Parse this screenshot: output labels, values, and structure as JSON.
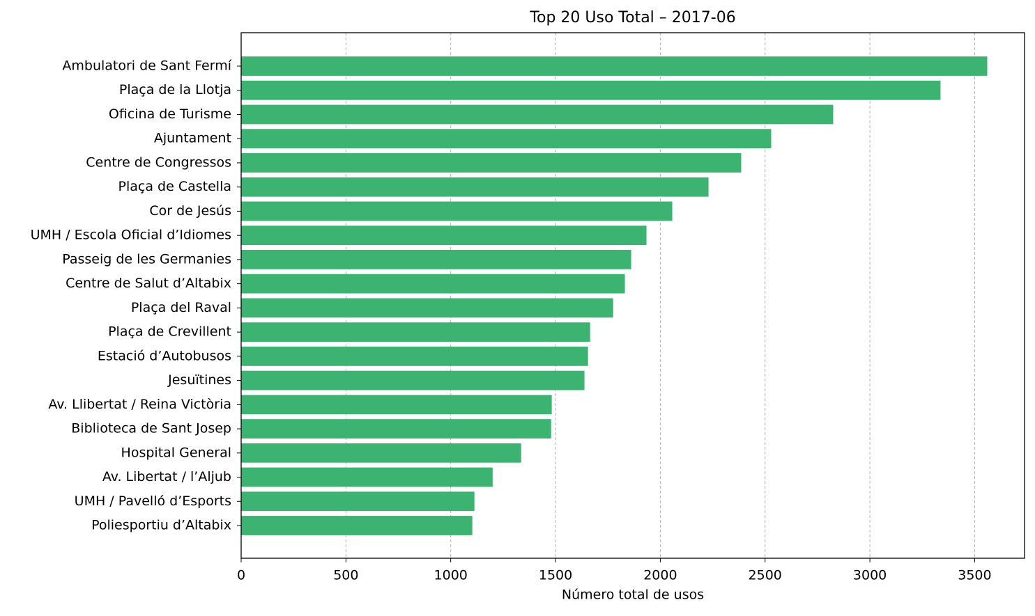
{
  "chart_data": {
    "type": "barh",
    "title": "Top 20 Uso Total – 2017-06",
    "xlabel": "Número total de usos",
    "categories": [
      "Ambulatori de Sant Fermí",
      "Plaça de la Llotja",
      "Oficina de Turisme",
      "Ajuntament",
      "Centre de Congressos",
      "Plaça de Castella",
      "Cor de Jesús",
      "UMH / Escola Oficial d’Idiomes",
      "Passeig de les Germanies",
      "Centre de Salut d’Altabix",
      "Plaça del Raval",
      "Plaça de Crevillent",
      "Estació d’Autobusos",
      "Jesuïtines",
      "Av. Llibertat / Reina Victòria",
      "Biblioteca de Sant Josep",
      "Hospital General",
      "Av. Libertat / l’Aljub",
      "UMH / Pavelló d’Esports",
      "Poliesportiu d’Altabix"
    ],
    "values": [
      3560,
      3337,
      2825,
      2529,
      2386,
      2230,
      2057,
      1934,
      1861,
      1831,
      1775,
      1665,
      1655,
      1638,
      1482,
      1479,
      1336,
      1200,
      1113,
      1103
    ],
    "color": "#3cb371",
    "xlim": [
      0,
      3738
    ],
    "xticks": [
      0,
      500,
      1000,
      1500,
      2000,
      2500,
      3000,
      3500
    ],
    "grid": true
  }
}
